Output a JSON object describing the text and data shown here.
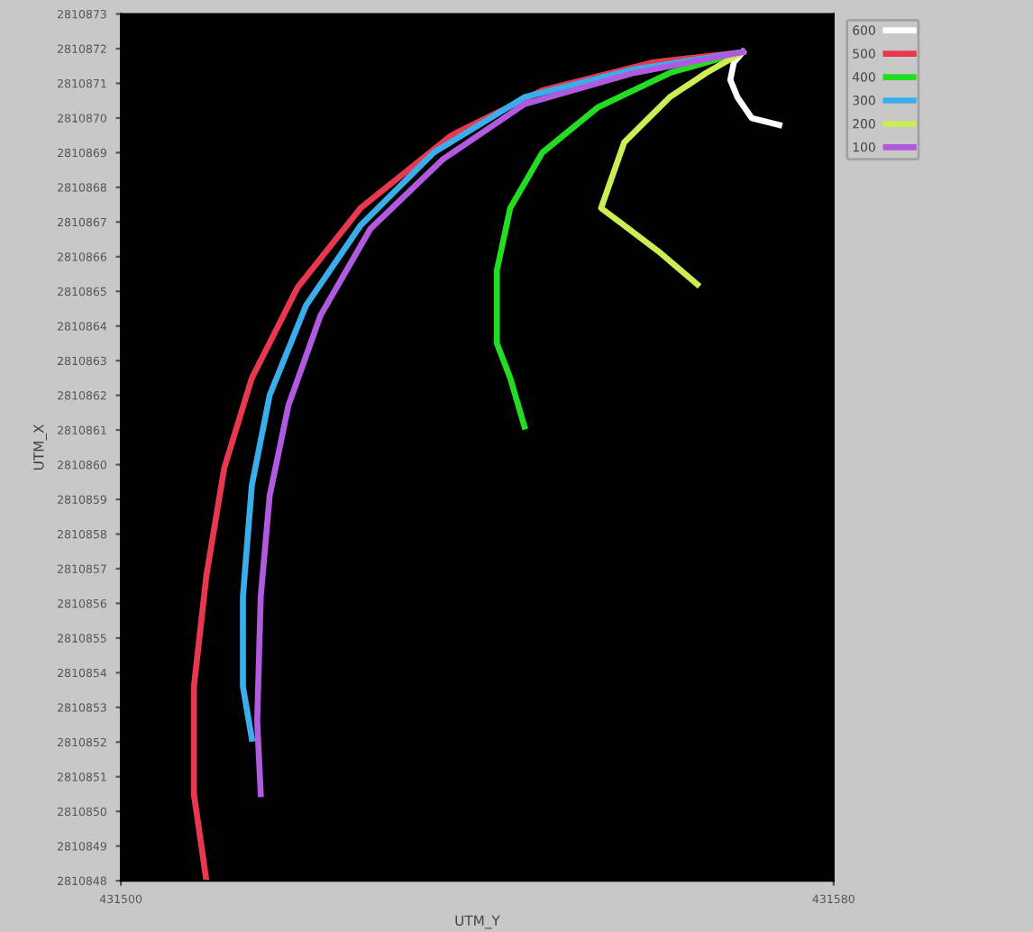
{
  "chart_data": {
    "type": "line",
    "xlabel": "UTM_Y",
    "ylabel": "UTM_X",
    "xlim": [
      431500,
      431580
    ],
    "xticks": [
      431500,
      431580
    ],
    "ylim": [
      2810848,
      2810873
    ],
    "yticks": [
      2810848,
      2810849,
      2810850,
      2810851,
      2810852,
      2810853,
      2810854,
      2810855,
      2810856,
      2810857,
      2810858,
      2810859,
      2810860,
      2810861,
      2810862,
      2810863,
      2810864,
      2810865,
      2810866,
      2810867,
      2810868,
      2810869,
      2810870,
      2810871,
      2810872,
      2810873
    ],
    "grid": false,
    "legend": "top right",
    "marker": "none",
    "line_style": "solid",
    "series": [
      {
        "name": "600",
        "color": "#ffffff",
        "x": [
          431569.8,
          431568.8,
          431568.4,
          431569.2,
          431570.8,
          431573.9
        ],
        "values": [
          2810871.9,
          2810871.6,
          2810871.1,
          2810870.6,
          2810870.0,
          2810869.8
        ]
      },
      {
        "name": "500",
        "color": "#e8384f",
        "x": [
          431569.8,
          431559.6,
          431547.3,
          431537.1,
          431526.9,
          431519.8,
          431514.7,
          431511.6,
          431509.6,
          431508.2,
          431508.2,
          431509.6
        ],
        "values": [
          2810871.9,
          2810871.6,
          2810870.8,
          2810869.5,
          2810867.4,
          2810865.1,
          2810862.5,
          2810859.9,
          2810856.8,
          2810853.6,
          2810850.5,
          2810848.0
        ]
      },
      {
        "name": "400",
        "color": "#22dd22",
        "x": [
          431569.8,
          431561.6,
          431553.5,
          431547.3,
          431543.7,
          431542.2,
          431542.2,
          431543.7,
          431545.3
        ],
        "values": [
          2810871.9,
          2810871.3,
          2810870.3,
          2810869.0,
          2810867.4,
          2810865.6,
          2810863.5,
          2810862.5,
          2810861.1
        ]
      },
      {
        "name": "300",
        "color": "#3aaeea",
        "x": [
          431569.8,
          431557.6,
          431545.3,
          431535.1,
          431526.9,
          431520.8,
          431516.7,
          431514.7,
          431513.7,
          431513.7,
          431514.7
        ],
        "values": [
          2810871.9,
          2810871.4,
          2810870.6,
          2810869.0,
          2810866.9,
          2810864.6,
          2810862.0,
          2810859.4,
          2810856.2,
          2810853.6,
          2810852.1
        ]
      },
      {
        "name": "200",
        "color": "#ccee55",
        "x": [
          431569.8,
          431565.7,
          431561.6,
          431556.5,
          431553.9,
          431556.5,
          431560.6,
          431564.7
        ],
        "values": [
          2810871.9,
          2810871.3,
          2810870.6,
          2810869.3,
          2810867.4,
          2810866.9,
          2810866.1,
          2810865.2
        ]
      },
      {
        "name": "100",
        "color": "#b05ae0",
        "x": [
          431569.8,
          431557.6,
          431545.3,
          431536.1,
          431528.0,
          431522.4,
          431518.8,
          431516.7,
          431515.7,
          431515.3,
          431515.7
        ],
        "values": [
          2810871.9,
          2810871.3,
          2810870.4,
          2810868.8,
          2810866.8,
          2810864.3,
          2810861.7,
          2810859.1,
          2810856.2,
          2810852.6,
          2810850.5
        ]
      }
    ]
  }
}
